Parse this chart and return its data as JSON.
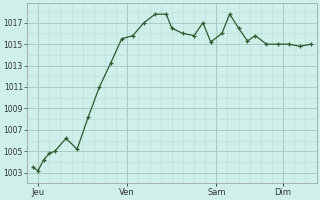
{
  "background_color": "#cff0ea",
  "line_color": "#2d5a2d",
  "marker_color": "#2d5a2d",
  "grid_color_major": "#aaccc6",
  "grid_color_minor": "#bde0da",
  "vline_color": "#888888",
  "ylim": [
    1002.0,
    1018.8
  ],
  "yticks": [
    1003,
    1005,
    1007,
    1009,
    1011,
    1013,
    1015,
    1017
  ],
  "day_labels": [
    "Jeu",
    "Ven",
    "Sam",
    "Dim"
  ],
  "day_positions": [
    1,
    9,
    17,
    23
  ],
  "xlim": [
    0,
    26
  ],
  "x_values": [
    0.5,
    1.0,
    1.5,
    2.0,
    2.5,
    3.5,
    4.5,
    5.5,
    6.5,
    7.5,
    8.5,
    9.5,
    10.5,
    11.5,
    12.5,
    13.0,
    14.0,
    15.0,
    15.8,
    16.5,
    17.5,
    18.2,
    19.0,
    19.8,
    20.5,
    21.5,
    22.5,
    23.5,
    24.5,
    25.5
  ],
  "y_values": [
    1003.5,
    1003.2,
    1004.2,
    1004.8,
    1005.0,
    1006.2,
    1005.2,
    1008.2,
    1011.0,
    1013.2,
    1015.5,
    1015.8,
    1017.0,
    1017.8,
    1017.8,
    1016.5,
    1016.0,
    1015.8,
    1017.0,
    1015.2,
    1016.0,
    1017.8,
    1016.5,
    1015.3,
    1015.8,
    1015.0,
    1015.0,
    1015.0,
    1014.8,
    1015.0
  ]
}
